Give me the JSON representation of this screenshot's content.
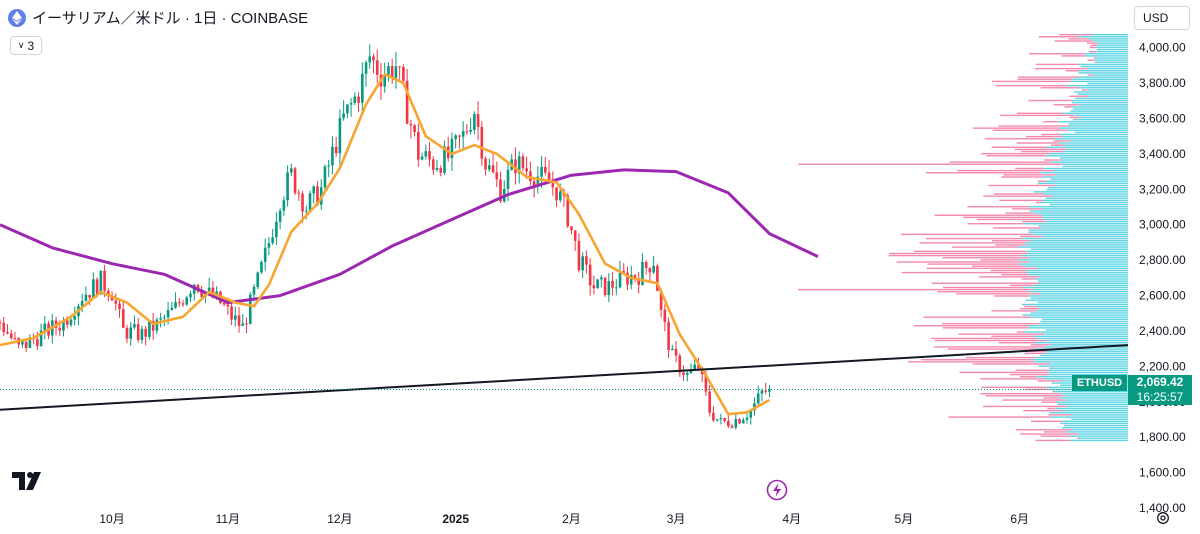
{
  "header": {
    "title": "イーサリアム／米ドル · 1日 · COINBASE",
    "indicator_count": "3",
    "currency": "USD"
  },
  "price_tag": {
    "symbol": "ETHUSD",
    "price": "2,069.42",
    "countdown": "16:25:57"
  },
  "icons": {
    "logo": "tradingview-logo-icon",
    "settings": "settings-gear-icon",
    "bolt": "lightning-bolt-icon",
    "asset": "ethereum-icon"
  },
  "colors": {
    "up": "#089981",
    "down": "#f23645",
    "ma_fast": "#f7a531",
    "ma_slow": "#9c27b0",
    "trendline": "#131722",
    "vp_up": "#26c6da",
    "vp_down": "#f06292"
  },
  "chart_data": {
    "type": "candlestick",
    "y_axis": {
      "min": 1400,
      "max": 4100,
      "ticks": [
        1400,
        1600,
        1800,
        2000,
        2200,
        2400,
        2600,
        2800,
        3000,
        3200,
        3400,
        3600,
        3800,
        4000
      ],
      "tick_labels": [
        "1,400.00",
        "1,600.00",
        "1,800.00",
        "2,000.00",
        "2,200.00",
        "2,400.00",
        "2,600.00",
        "2,800.00",
        "3,000.00",
        "3,200.00",
        "3,400.00",
        "3,600.00",
        "3,800.00",
        "4,000.00"
      ]
    },
    "x_axis": {
      "start": "2024-09-01",
      "end": "2025-06-30",
      "ticks": [
        {
          "date": "2024-10-01",
          "label": "10月"
        },
        {
          "date": "2024-11-01",
          "label": "11月"
        },
        {
          "date": "2024-12-01",
          "label": "12月"
        },
        {
          "date": "2025-01-01",
          "label": "2025"
        },
        {
          "date": "2025-02-01",
          "label": "2月"
        },
        {
          "date": "2025-03-01",
          "label": "3月"
        },
        {
          "date": "2025-04-01",
          "label": "4月"
        },
        {
          "date": "2025-05-01",
          "label": "5月"
        },
        {
          "date": "2025-06-01",
          "label": "6月"
        }
      ]
    },
    "price_path": [
      [
        "2024-09-01",
        2450
      ],
      [
        "2024-09-06",
        2300
      ],
      [
        "2024-09-12",
        2380
      ],
      [
        "2024-09-18",
        2450
      ],
      [
        "2024-09-23",
        2600
      ],
      [
        "2024-09-28",
        2680
      ],
      [
        "2024-10-01",
        2620
      ],
      [
        "2024-10-04",
        2400
      ],
      [
        "2024-10-09",
        2380
      ],
      [
        "2024-10-14",
        2450
      ],
      [
        "2024-10-18",
        2530
      ],
      [
        "2024-10-23",
        2680
      ],
      [
        "2024-10-26",
        2620
      ],
      [
        "2024-10-30",
        2560
      ],
      [
        "2024-11-02",
        2480
      ],
      [
        "2024-11-05",
        2420
      ],
      [
        "2024-11-09",
        2680
      ],
      [
        "2024-11-12",
        2900
      ],
      [
        "2024-11-15",
        3150
      ],
      [
        "2024-11-18",
        3280
      ],
      [
        "2024-11-22",
        3100
      ],
      [
        "2024-11-26",
        3200
      ],
      [
        "2024-11-29",
        3400
      ],
      [
        "2024-12-02",
        3600
      ],
      [
        "2024-12-06",
        3750
      ],
      [
        "2024-12-09",
        3950
      ],
      [
        "2024-12-12",
        3850
      ],
      [
        "2024-12-16",
        3900
      ],
      [
        "2024-12-19",
        3650
      ],
      [
        "2024-12-22",
        3400
      ],
      [
        "2024-12-26",
        3350
      ],
      [
        "2024-12-30",
        3380
      ],
      [
        "2025-01-03",
        3500
      ],
      [
        "2025-01-06",
        3650
      ],
      [
        "2025-01-09",
        3350
      ],
      [
        "2025-01-13",
        3200
      ],
      [
        "2025-01-17",
        3350
      ],
      [
        "2025-01-21",
        3300
      ],
      [
        "2025-01-25",
        3250
      ],
      [
        "2025-01-28",
        3200
      ],
      [
        "2025-01-31",
        3050
      ],
      [
        "2025-02-03",
        2800
      ],
      [
        "2025-02-07",
        2650
      ],
      [
        "2025-02-11",
        2650
      ],
      [
        "2025-02-15",
        2700
      ],
      [
        "2025-02-19",
        2720
      ],
      [
        "2025-02-23",
        2800
      ],
      [
        "2025-02-25",
        2500
      ],
      [
        "2025-02-28",
        2250
      ],
      [
        "2025-03-04",
        2150
      ],
      [
        "2025-03-07",
        2200
      ],
      [
        "2025-03-10",
        1950
      ],
      [
        "2025-03-13",
        1880
      ],
      [
        "2025-03-17",
        1900
      ],
      [
        "2025-03-21",
        1950
      ],
      [
        "2025-03-24",
        2050
      ],
      [
        "2025-03-26",
        2069.42
      ]
    ],
    "ma_fast": [
      [
        "2024-09-01",
        2320
      ],
      [
        "2024-09-10",
        2360
      ],
      [
        "2024-09-20",
        2480
      ],
      [
        "2024-09-28",
        2620
      ],
      [
        "2024-10-05",
        2560
      ],
      [
        "2024-10-12",
        2440
      ],
      [
        "2024-10-20",
        2480
      ],
      [
        "2024-10-27",
        2620
      ],
      [
        "2024-11-03",
        2560
      ],
      [
        "2024-11-08",
        2540
      ],
      [
        "2024-11-12",
        2660
      ],
      [
        "2024-11-18",
        2960
      ],
      [
        "2024-11-25",
        3120
      ],
      [
        "2024-12-01",
        3320
      ],
      [
        "2024-12-08",
        3680
      ],
      [
        "2024-12-13",
        3850
      ],
      [
        "2024-12-18",
        3800
      ],
      [
        "2024-12-24",
        3500
      ],
      [
        "2024-12-31",
        3400
      ],
      [
        "2025-01-06",
        3450
      ],
      [
        "2025-01-12",
        3400
      ],
      [
        "2025-01-20",
        3270
      ],
      [
        "2025-01-28",
        3240
      ],
      [
        "2025-02-03",
        3060
      ],
      [
        "2025-02-10",
        2780
      ],
      [
        "2025-02-17",
        2700
      ],
      [
        "2025-02-24",
        2670
      ],
      [
        "2025-03-02",
        2380
      ],
      [
        "2025-03-09",
        2150
      ],
      [
        "2025-03-15",
        1930
      ],
      [
        "2025-03-20",
        1940
      ],
      [
        "2025-03-26",
        2010
      ]
    ],
    "ma_slow": [
      [
        "2024-09-01",
        3000
      ],
      [
        "2024-09-15",
        2870
      ],
      [
        "2024-10-01",
        2780
      ],
      [
        "2024-10-15",
        2720
      ],
      [
        "2024-11-01",
        2560
      ],
      [
        "2024-11-15",
        2600
      ],
      [
        "2024-12-01",
        2720
      ],
      [
        "2024-12-15",
        2880
      ],
      [
        "2025-01-01",
        3040
      ],
      [
        "2025-01-15",
        3170
      ],
      [
        "2025-02-01",
        3280
      ],
      [
        "2025-02-15",
        3310
      ],
      [
        "2025-03-01",
        3300
      ],
      [
        "2025-03-15",
        3180
      ],
      [
        "2025-03-26",
        2950
      ],
      [
        "2025-04-08",
        2820
      ]
    ],
    "trendline": {
      "p1": [
        "2024-09-01",
        1955
      ],
      "p2": [
        "2025-06-30",
        2320
      ]
    },
    "last_price": 2069.42
  }
}
